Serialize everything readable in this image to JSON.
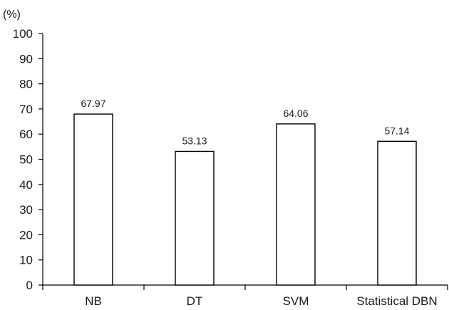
{
  "chart_data": {
    "type": "bar",
    "y_unit": "(%)",
    "categories": [
      "NB",
      "DT",
      "SVM",
      "Statistical DBN"
    ],
    "values": [
      67.97,
      53.13,
      64.06,
      57.14
    ],
    "data_labels": [
      "67.97",
      "53.13",
      "64.06",
      "57.14"
    ],
    "ylim": [
      0,
      100
    ],
    "y_ticks": [
      "0",
      "10",
      "20",
      "30",
      "40",
      "50",
      "60",
      "70",
      "80",
      "90",
      "100"
    ],
    "grid": false,
    "legend": "none",
    "bar_fill": "#ffffff",
    "bar_stroke": "#000000"
  }
}
